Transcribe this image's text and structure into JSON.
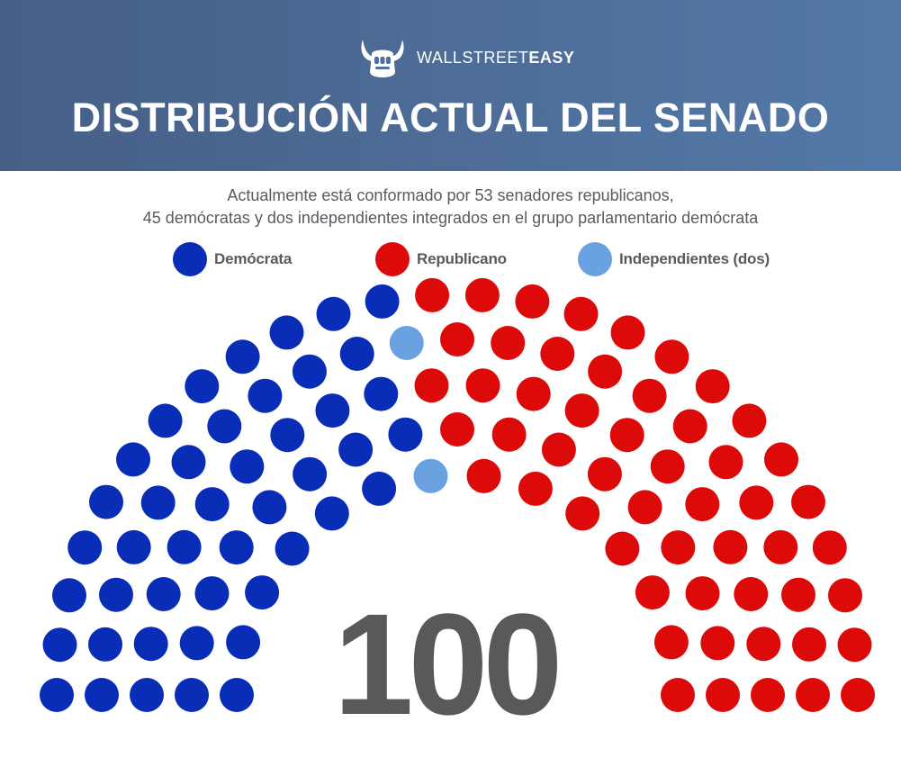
{
  "header": {
    "brand_part1": "WALLSTREET",
    "brand_part2": "EASY",
    "title": "DISTRIBUCIÓN ACTUAL DEL SENADO",
    "logo_icon": "bull-fist-icon"
  },
  "subtitle": {
    "line1": "Actualmente está conformado por 53 senadores republicanos,",
    "line2": "45 demócratas y dos independientes integrados en el grupo parlamentario demócrata"
  },
  "colors": {
    "header_start": "#465f86",
    "header_end": "#5479a8",
    "democrat": "#0a2db8",
    "republican": "#dd0a0a",
    "independent": "#6aa1e0",
    "text": "#575b61",
    "total_text": "#58595b"
  },
  "chart_data": {
    "type": "parliament",
    "title": "DISTRIBUCIÓN ACTUAL DEL SENADO",
    "total": 100,
    "legend": [
      {
        "name": "Demócrata",
        "color": "#0a2db8"
      },
      {
        "name": "Republicano",
        "color": "#dd0a0a"
      },
      {
        "name": "Independientes (dos)",
        "color": "#6aa1e0"
      }
    ],
    "series": [
      {
        "name": "Demócrata",
        "values": [
          45
        ]
      },
      {
        "name": "Republicano",
        "values": [
          53
        ]
      },
      {
        "name": "Independientes (dos)",
        "values": [
          2
        ]
      }
    ]
  }
}
